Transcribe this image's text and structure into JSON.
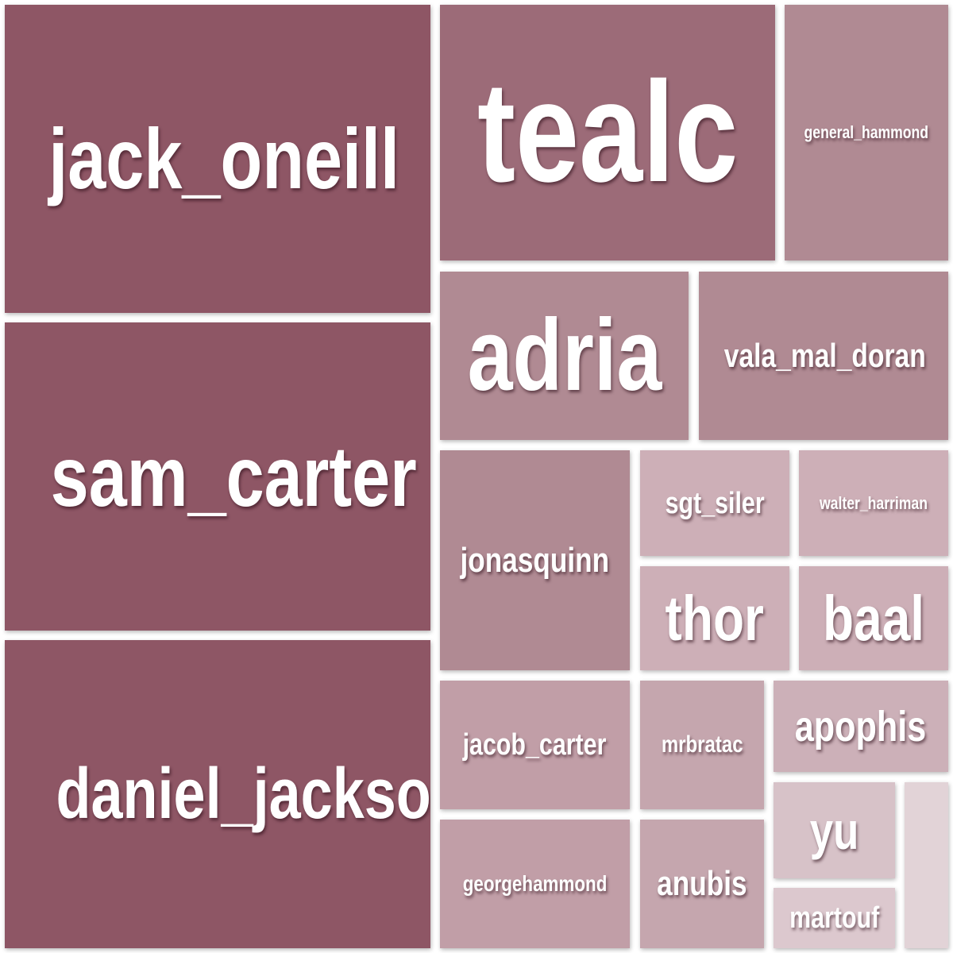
{
  "chart_data": {
    "type": "treemap",
    "items": [
      {
        "label": "jack_oneill",
        "value": 210,
        "color": "#8e5665"
      },
      {
        "label": "sam_carter",
        "value": 210,
        "color": "#8e5665"
      },
      {
        "label": "daniel_jackson",
        "value": 210,
        "color": "#8e5665"
      },
      {
        "label": "tealc",
        "value": 130,
        "color": "#9c6b78"
      },
      {
        "label": "general_hammond",
        "value": 60,
        "color": "#b08a93"
      },
      {
        "label": "adria",
        "value": 68,
        "color": "#b08a93"
      },
      {
        "label": "vala_mal_doran",
        "value": 68,
        "color": "#b08a93"
      },
      {
        "label": "jonasquinn",
        "value": 66,
        "color": "#b08a93"
      },
      {
        "label": "sgt_siler",
        "value": 27,
        "color": "#cdafb7"
      },
      {
        "label": "walter_harriman",
        "value": 27,
        "color": "#cdafb7"
      },
      {
        "label": "thor",
        "value": 27,
        "color": "#cdafb7"
      },
      {
        "label": "baal",
        "value": 27,
        "color": "#cdafb7"
      },
      {
        "label": "jacob_carter",
        "value": 31,
        "color": "#c19ea7"
      },
      {
        "label": "georgehammond",
        "value": 32,
        "color": "#c19ea7"
      },
      {
        "label": "mrbratac",
        "value": 33,
        "color": "#c5a6ae"
      },
      {
        "label": "anubis",
        "value": 33,
        "color": "#c5a6ae"
      },
      {
        "label": "apophis",
        "value": 19,
        "color": "#ccb0b8"
      },
      {
        "label": "yu",
        "value": 13,
        "color": "#d7c2c8"
      },
      {
        "label": "martouf",
        "value": 8,
        "color": "#dcc8ce"
      },
      {
        "label": "",
        "value": 6,
        "color": "#e2d3d7"
      }
    ]
  }
}
